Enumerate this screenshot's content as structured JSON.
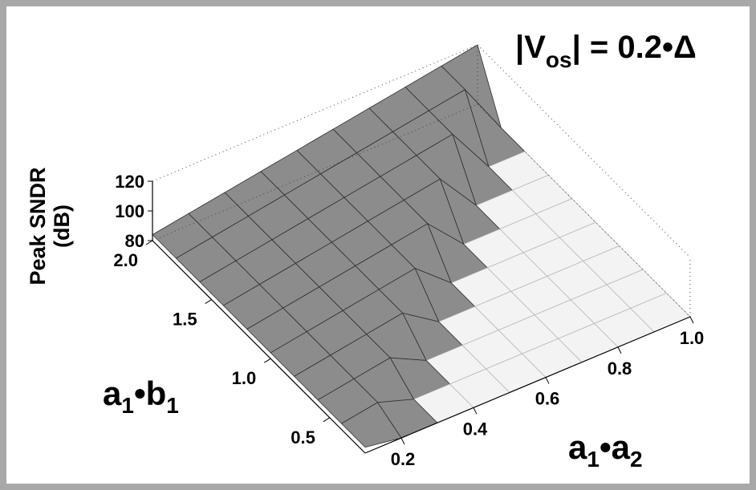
{
  "chart_data": {
    "type": "surface3d",
    "title": [
      "|V",
      "os",
      "| = 0.2•Δ"
    ],
    "zlabel": [
      "Peak SNDR",
      "(dB)"
    ],
    "xlabel": [
      "a",
      "1",
      "•a",
      "2"
    ],
    "ylabel": [
      "a",
      "1",
      "•b",
      "1"
    ],
    "x": [
      0.1,
      0.2,
      0.3,
      0.4,
      0.5,
      0.6,
      0.7,
      0.8,
      0.9,
      1.0
    ],
    "y": [
      0.2,
      0.4,
      0.6,
      0.8,
      1.0,
      1.2,
      1.4,
      1.6,
      1.8,
      2.0
    ],
    "z": [
      [
        84,
        80,
        80,
        80,
        80,
        80,
        80,
        80,
        80,
        80
      ],
      [
        84,
        88,
        80,
        80,
        80,
        80,
        80,
        80,
        80,
        80
      ],
      [
        84,
        88,
        92,
        80,
        80,
        80,
        80,
        80,
        80,
        80
      ],
      [
        84,
        88,
        92,
        96,
        80,
        80,
        80,
        80,
        80,
        80
      ],
      [
        84,
        88,
        92,
        96,
        100,
        80,
        80,
        80,
        80,
        80
      ],
      [
        84,
        88,
        92,
        96,
        100,
        104,
        80,
        80,
        80,
        80
      ],
      [
        84,
        88,
        92,
        96,
        100,
        104,
        108,
        80,
        80,
        80
      ],
      [
        84,
        88,
        92,
        96,
        100,
        104,
        108,
        112,
        80,
        80
      ],
      [
        84,
        88,
        92,
        96,
        100,
        104,
        108,
        112,
        116,
        80
      ],
      [
        84,
        88,
        92,
        96,
        100,
        104,
        108,
        112,
        116,
        120
      ]
    ],
    "xlim": [
      0.1,
      1.0
    ],
    "ylim": [
      0.2,
      2.0
    ],
    "zlim": [
      80,
      120
    ],
    "xticks": [
      0.2,
      0.4,
      0.6,
      0.8,
      {
        "value": 1,
        "label": "1.0"
      }
    ],
    "yticks": [
      0.5,
      {
        "value": 1,
        "label": "1.0"
      },
      1.5,
      {
        "value": 2,
        "label": "2.0"
      }
    ],
    "zticks": [
      80,
      100,
      120
    ],
    "surface_colors": {
      "low": "#f3f3f3",
      "low_edge": "#b8b8b8",
      "high": "#8c8c8c",
      "high_edge": "#2e2e2e"
    }
  }
}
